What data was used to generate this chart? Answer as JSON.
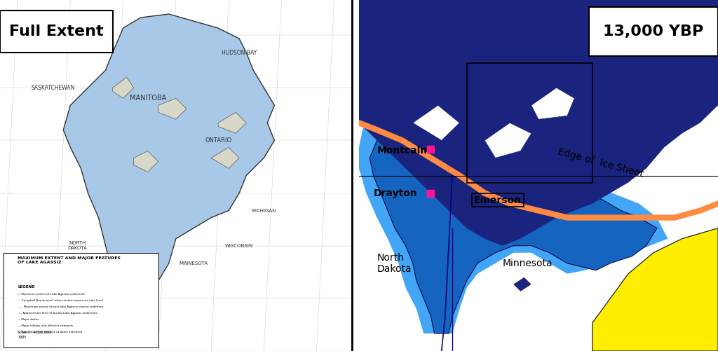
{
  "fig_width": 10.24,
  "fig_height": 5.01,
  "dpi": 100,
  "background_color": "#ffffff",
  "left_panel": {
    "title": "Full Extent",
    "title_fontsize": 16,
    "title_fontweight": "bold",
    "bg_color": "#f5f5f0",
    "lake_color": "#a8c8e8",
    "lake_outline_color": "#333333",
    "label_color": "#333333"
  },
  "right_panel": {
    "title": "13,000 YBP",
    "title_fontsize": 16,
    "title_fontweight": "bold",
    "bg_color": "#ffffff",
    "ice_color": "#1a237e",
    "lake_deep_color": "#1565c0",
    "lake_shallow_color": "#42a5f5",
    "ice_edge_color": "#ff8c42",
    "land_color": "#ffffff",
    "yellow_land_color": "#ffee00",
    "label_color": "#000000",
    "location_marker_color": "#ff1493",
    "ice_edge_label": "Edge of  Ice Sheet"
  }
}
